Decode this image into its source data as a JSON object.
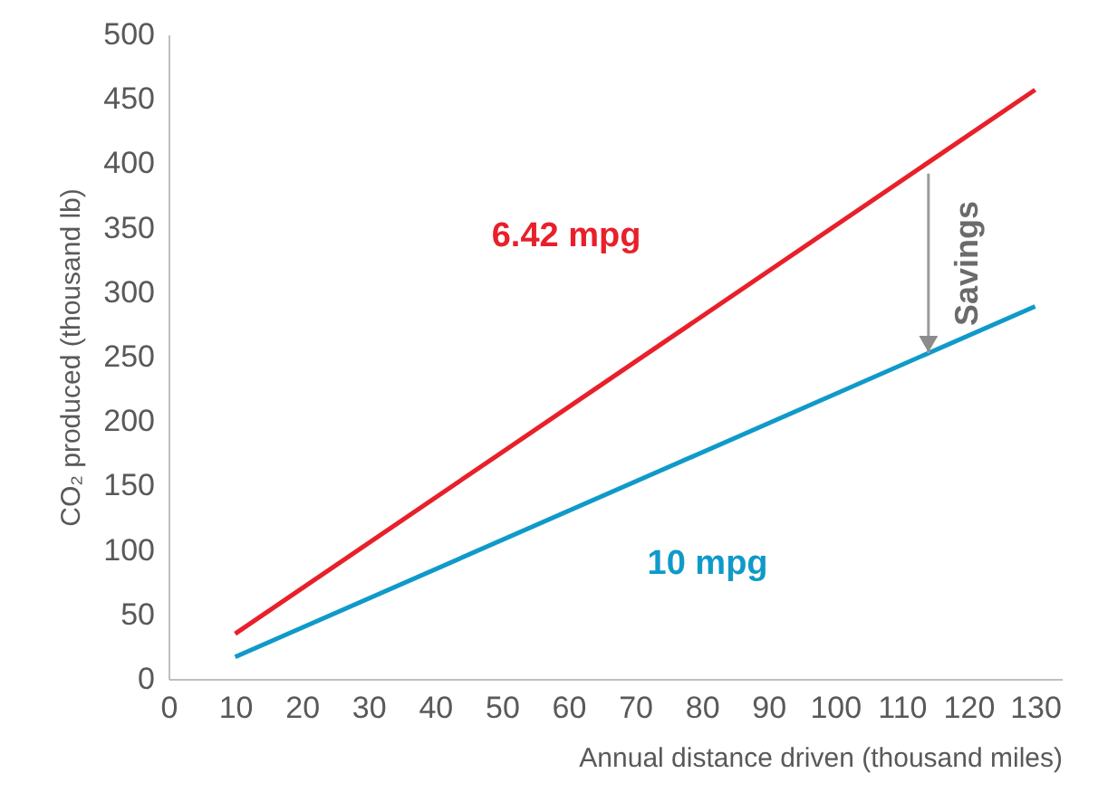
{
  "chart_data": {
    "type": "line",
    "xlabel": "Annual distance driven (thousand miles)",
    "ylabel": "CO₂ produced (thousand lb)",
    "x": [
      10,
      130
    ],
    "series": [
      {
        "name": "6.42 mpg",
        "color": "#e8202a",
        "values": [
          35,
          457
        ]
      },
      {
        "name": "10 mpg",
        "color": "#0f9ac9",
        "values": [
          17,
          289
        ]
      }
    ],
    "xlim": [
      0,
      134
    ],
    "xticks": [
      0,
      10,
      20,
      30,
      40,
      50,
      60,
      70,
      80,
      90,
      100,
      110,
      120,
      130
    ],
    "ylim": [
      0,
      500
    ],
    "yticks": [
      0,
      50,
      100,
      150,
      200,
      250,
      300,
      350,
      400,
      450,
      500
    ],
    "annotations": [
      {
        "text": "Savings",
        "x": 114,
        "y": 392
      }
    ],
    "grid": false,
    "legend": false,
    "marker": "none",
    "line_style": "solid"
  }
}
